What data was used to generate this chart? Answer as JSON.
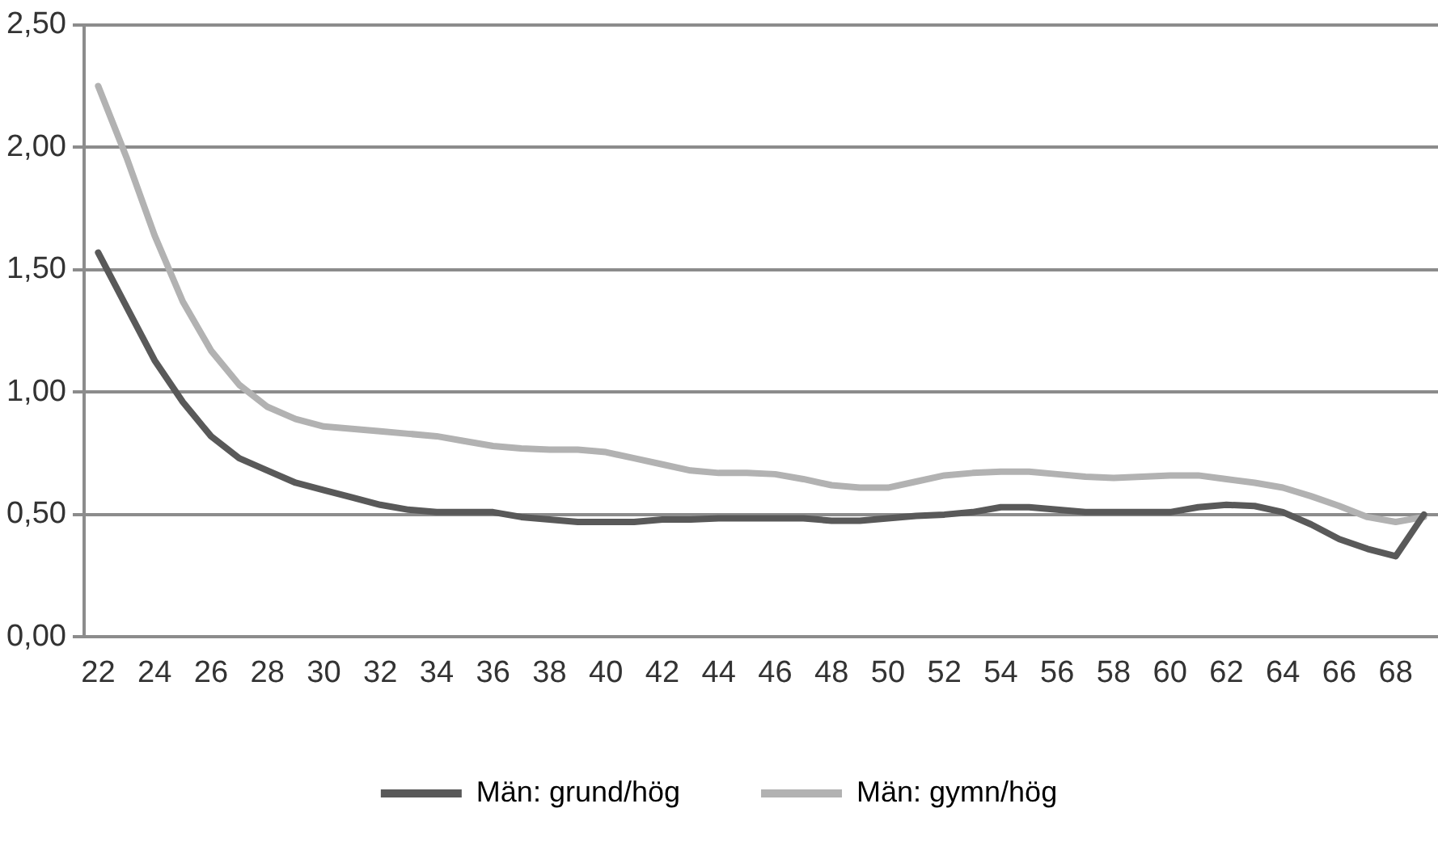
{
  "chart_data": {
    "type": "line",
    "categories": [
      "22",
      null,
      "24",
      null,
      "26",
      null,
      "28",
      null,
      "30",
      null,
      "32",
      null,
      "34",
      null,
      "36",
      null,
      "38",
      null,
      "40",
      null,
      "42",
      null,
      "44",
      null,
      "46",
      null,
      "48",
      null,
      "50",
      null,
      "52",
      null,
      "54",
      null,
      "56",
      null,
      "58",
      null,
      "60",
      null,
      "62",
      null,
      "64",
      null,
      "66",
      null,
      "68",
      null
    ],
    "series": [
      {
        "name": "Män: grund/hög",
        "color": "#595959",
        "values": [
          1.57,
          1.35,
          1.13,
          0.96,
          0.82,
          0.73,
          0.68,
          0.63,
          0.6,
          0.57,
          0.54,
          0.52,
          0.51,
          0.51,
          0.51,
          0.49,
          0.48,
          0.47,
          0.47,
          0.47,
          0.48,
          0.48,
          0.485,
          0.485,
          0.485,
          0.485,
          0.475,
          0.475,
          0.485,
          0.495,
          0.5,
          0.51,
          0.53,
          0.53,
          0.52,
          0.51,
          0.51,
          0.51,
          0.51,
          0.53,
          0.54,
          0.535,
          0.51,
          0.46,
          0.4,
          0.36,
          0.33,
          0.5
        ]
      },
      {
        "name": "Män: gymn/hög",
        "color": "#b2b2b2",
        "values": [
          2.25,
          1.96,
          1.64,
          1.37,
          1.17,
          1.03,
          0.94,
          0.89,
          0.86,
          0.85,
          0.84,
          0.83,
          0.82,
          0.8,
          0.78,
          0.77,
          0.765,
          0.765,
          0.755,
          0.73,
          0.705,
          0.68,
          0.67,
          0.67,
          0.665,
          0.645,
          0.62,
          0.61,
          0.61,
          0.635,
          0.66,
          0.67,
          0.675,
          0.675,
          0.665,
          0.655,
          0.65,
          0.655,
          0.66,
          0.66,
          0.645,
          0.63,
          0.61,
          0.575,
          0.535,
          0.49,
          0.47,
          0.49
        ]
      }
    ],
    "ylim": [
      0,
      2.5
    ],
    "yticks": [
      {
        "value": 0,
        "label": "0,00"
      },
      {
        "value": 0.5,
        "label": "0,50"
      },
      {
        "value": 1,
        "label": "1,00"
      },
      {
        "value": 1.5,
        "label": "1,50"
      },
      {
        "value": 2,
        "label": "2,00"
      },
      {
        "value": 2.5,
        "label": "2,50"
      }
    ],
    "grid": "y",
    "legend": "bottom",
    "marker": "none",
    "line_style": "solid"
  }
}
